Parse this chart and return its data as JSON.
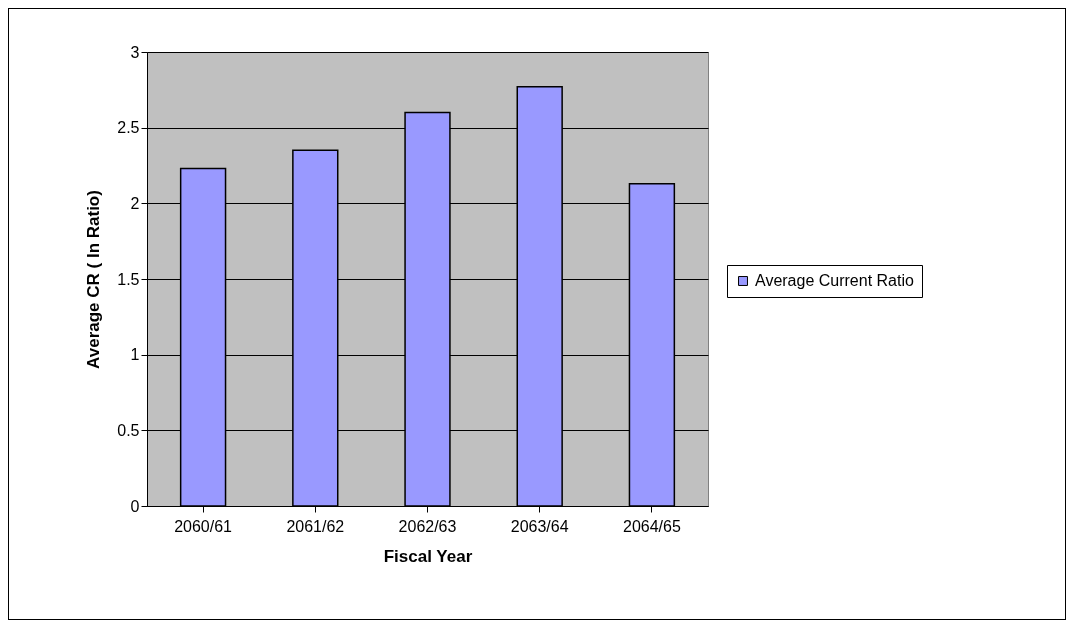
{
  "chart_data": {
    "type": "bar",
    "xlabel": "Fiscal Year",
    "ylabel": "Average CR ( In Ratio)",
    "categories": [
      "2060/61",
      "2061/62",
      "2062/63",
      "2063/64",
      "2064/65"
    ],
    "series": [
      {
        "name": "Average Current Ratio",
        "color": "#9999ff",
        "values": [
          2.23,
          2.35,
          2.6,
          2.77,
          2.13
        ]
      }
    ],
    "ylim": [
      0,
      3
    ],
    "yticks": [
      0,
      0.5,
      1,
      1.5,
      2,
      2.5,
      3
    ],
    "grid": "y",
    "legend": "right"
  }
}
